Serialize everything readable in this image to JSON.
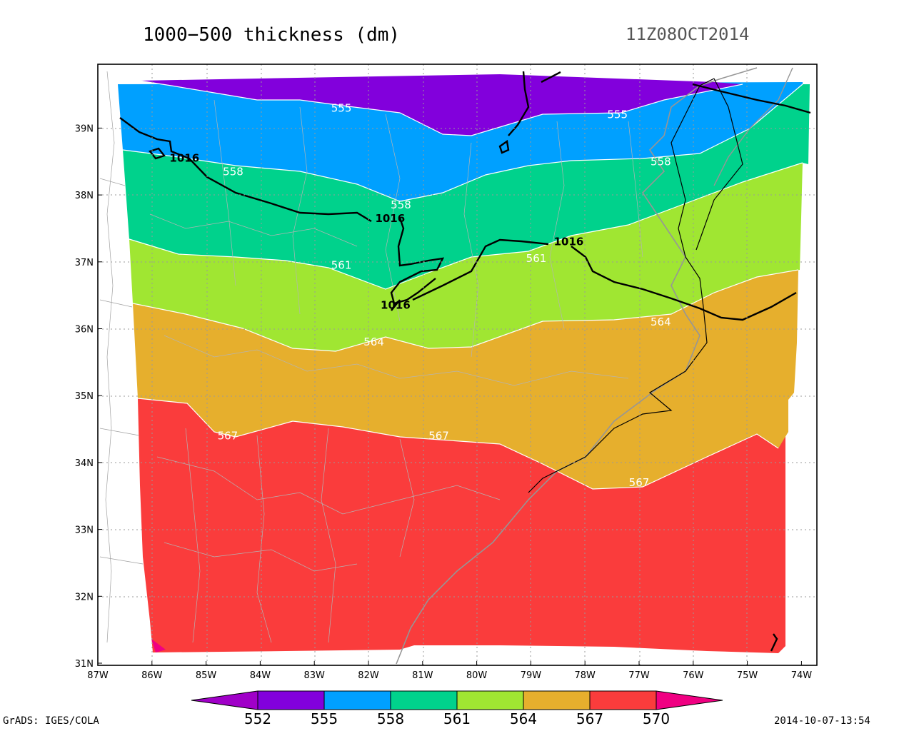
{
  "title": "1000−500 thickness (dm)",
  "valid_time": "11Z08OCT2014",
  "credit": "GrADS: IGES/COLA",
  "plot_date": "2014-10-07-13:54",
  "map": {
    "lon_range": [
      -87,
      -74
    ],
    "lat_range": [
      31,
      40
    ],
    "lon_ticks": [
      "87W",
      "86W",
      "85W",
      "84W",
      "83W",
      "82W",
      "81W",
      "80W",
      "79W",
      "78W",
      "77W",
      "76W",
      "75W",
      "74W"
    ],
    "lat_ticks": [
      "31N",
      "32N",
      "33N",
      "34N",
      "35N",
      "36N",
      "37N",
      "38N",
      "39N"
    ],
    "grid": "dotted"
  },
  "shading": {
    "levels": [
      "552",
      "555",
      "558",
      "561",
      "564",
      "567",
      "570"
    ],
    "colors": [
      "#a000c8",
      "#8200dc",
      "#00a0ff",
      "#00d28c",
      "#a0e632",
      "#e6af2d",
      "#fa3c3c",
      "#f00082"
    ],
    "band_labels": [
      {
        "text": "555",
        "lon": -82.5,
        "lat": 39.3
      },
      {
        "text": "555",
        "lon": -77.4,
        "lat": 39.2
      },
      {
        "text": "558",
        "lon": -84.5,
        "lat": 38.35
      },
      {
        "text": "558",
        "lon": -81.4,
        "lat": 37.85
      },
      {
        "text": "558",
        "lon": -76.6,
        "lat": 38.5
      },
      {
        "text": "561",
        "lon": -82.5,
        "lat": 36.95
      },
      {
        "text": "561",
        "lon": -78.9,
        "lat": 37.05
      },
      {
        "text": "564",
        "lon": -81.9,
        "lat": 35.8
      },
      {
        "text": "564",
        "lon": -76.6,
        "lat": 36.1
      },
      {
        "text": "567",
        "lon": -84.6,
        "lat": 34.4
      },
      {
        "text": "567",
        "lon": -80.7,
        "lat": 34.4
      },
      {
        "text": "567",
        "lon": -77,
        "lat": 33.7
      }
    ]
  },
  "pressure_contours": {
    "label": "1016",
    "labels": [
      {
        "text": "1016",
        "lon": -85.4,
        "lat": 38.55
      },
      {
        "text": "1016",
        "lon": -81.6,
        "lat": 37.65
      },
      {
        "text": "1016",
        "lon": -78.3,
        "lat": 37.3
      },
      {
        "text": "1016",
        "lon": -81.5,
        "lat": 36.35
      }
    ]
  }
}
